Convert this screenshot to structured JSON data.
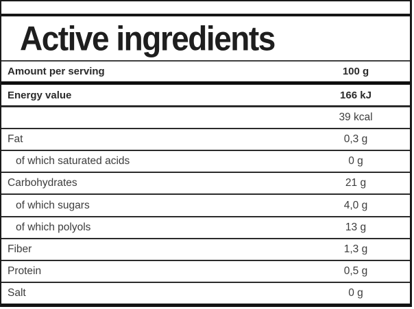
{
  "panel": {
    "title": "Active ingredients",
    "header": {
      "label": "Amount per serving",
      "value": "100 g"
    },
    "rows": [
      {
        "label": "Energy value",
        "value": "166 kJ"
      },
      {
        "label": "",
        "value": "39 kcal"
      },
      {
        "label": "Fat",
        "value": "0,3 g"
      },
      {
        "label": "of which saturated acids",
        "value": "0 g"
      },
      {
        "label": "Carbohydrates",
        "value": "21 g"
      },
      {
        "label": "of which sugars",
        "value": "4,0 g"
      },
      {
        "label": "of which polyols",
        "value": "13 g"
      },
      {
        "label": "Fiber",
        "value": "1,3 g"
      },
      {
        "label": "Protein",
        "value": "0,5 g"
      },
      {
        "label": "Salt",
        "value": "0 g"
      }
    ],
    "colors": {
      "frame_border": "#1a1a1a",
      "row_separator": "#2a2a2a",
      "title_text": "#1e1e1e",
      "body_text": "#3c3c3c"
    }
  }
}
